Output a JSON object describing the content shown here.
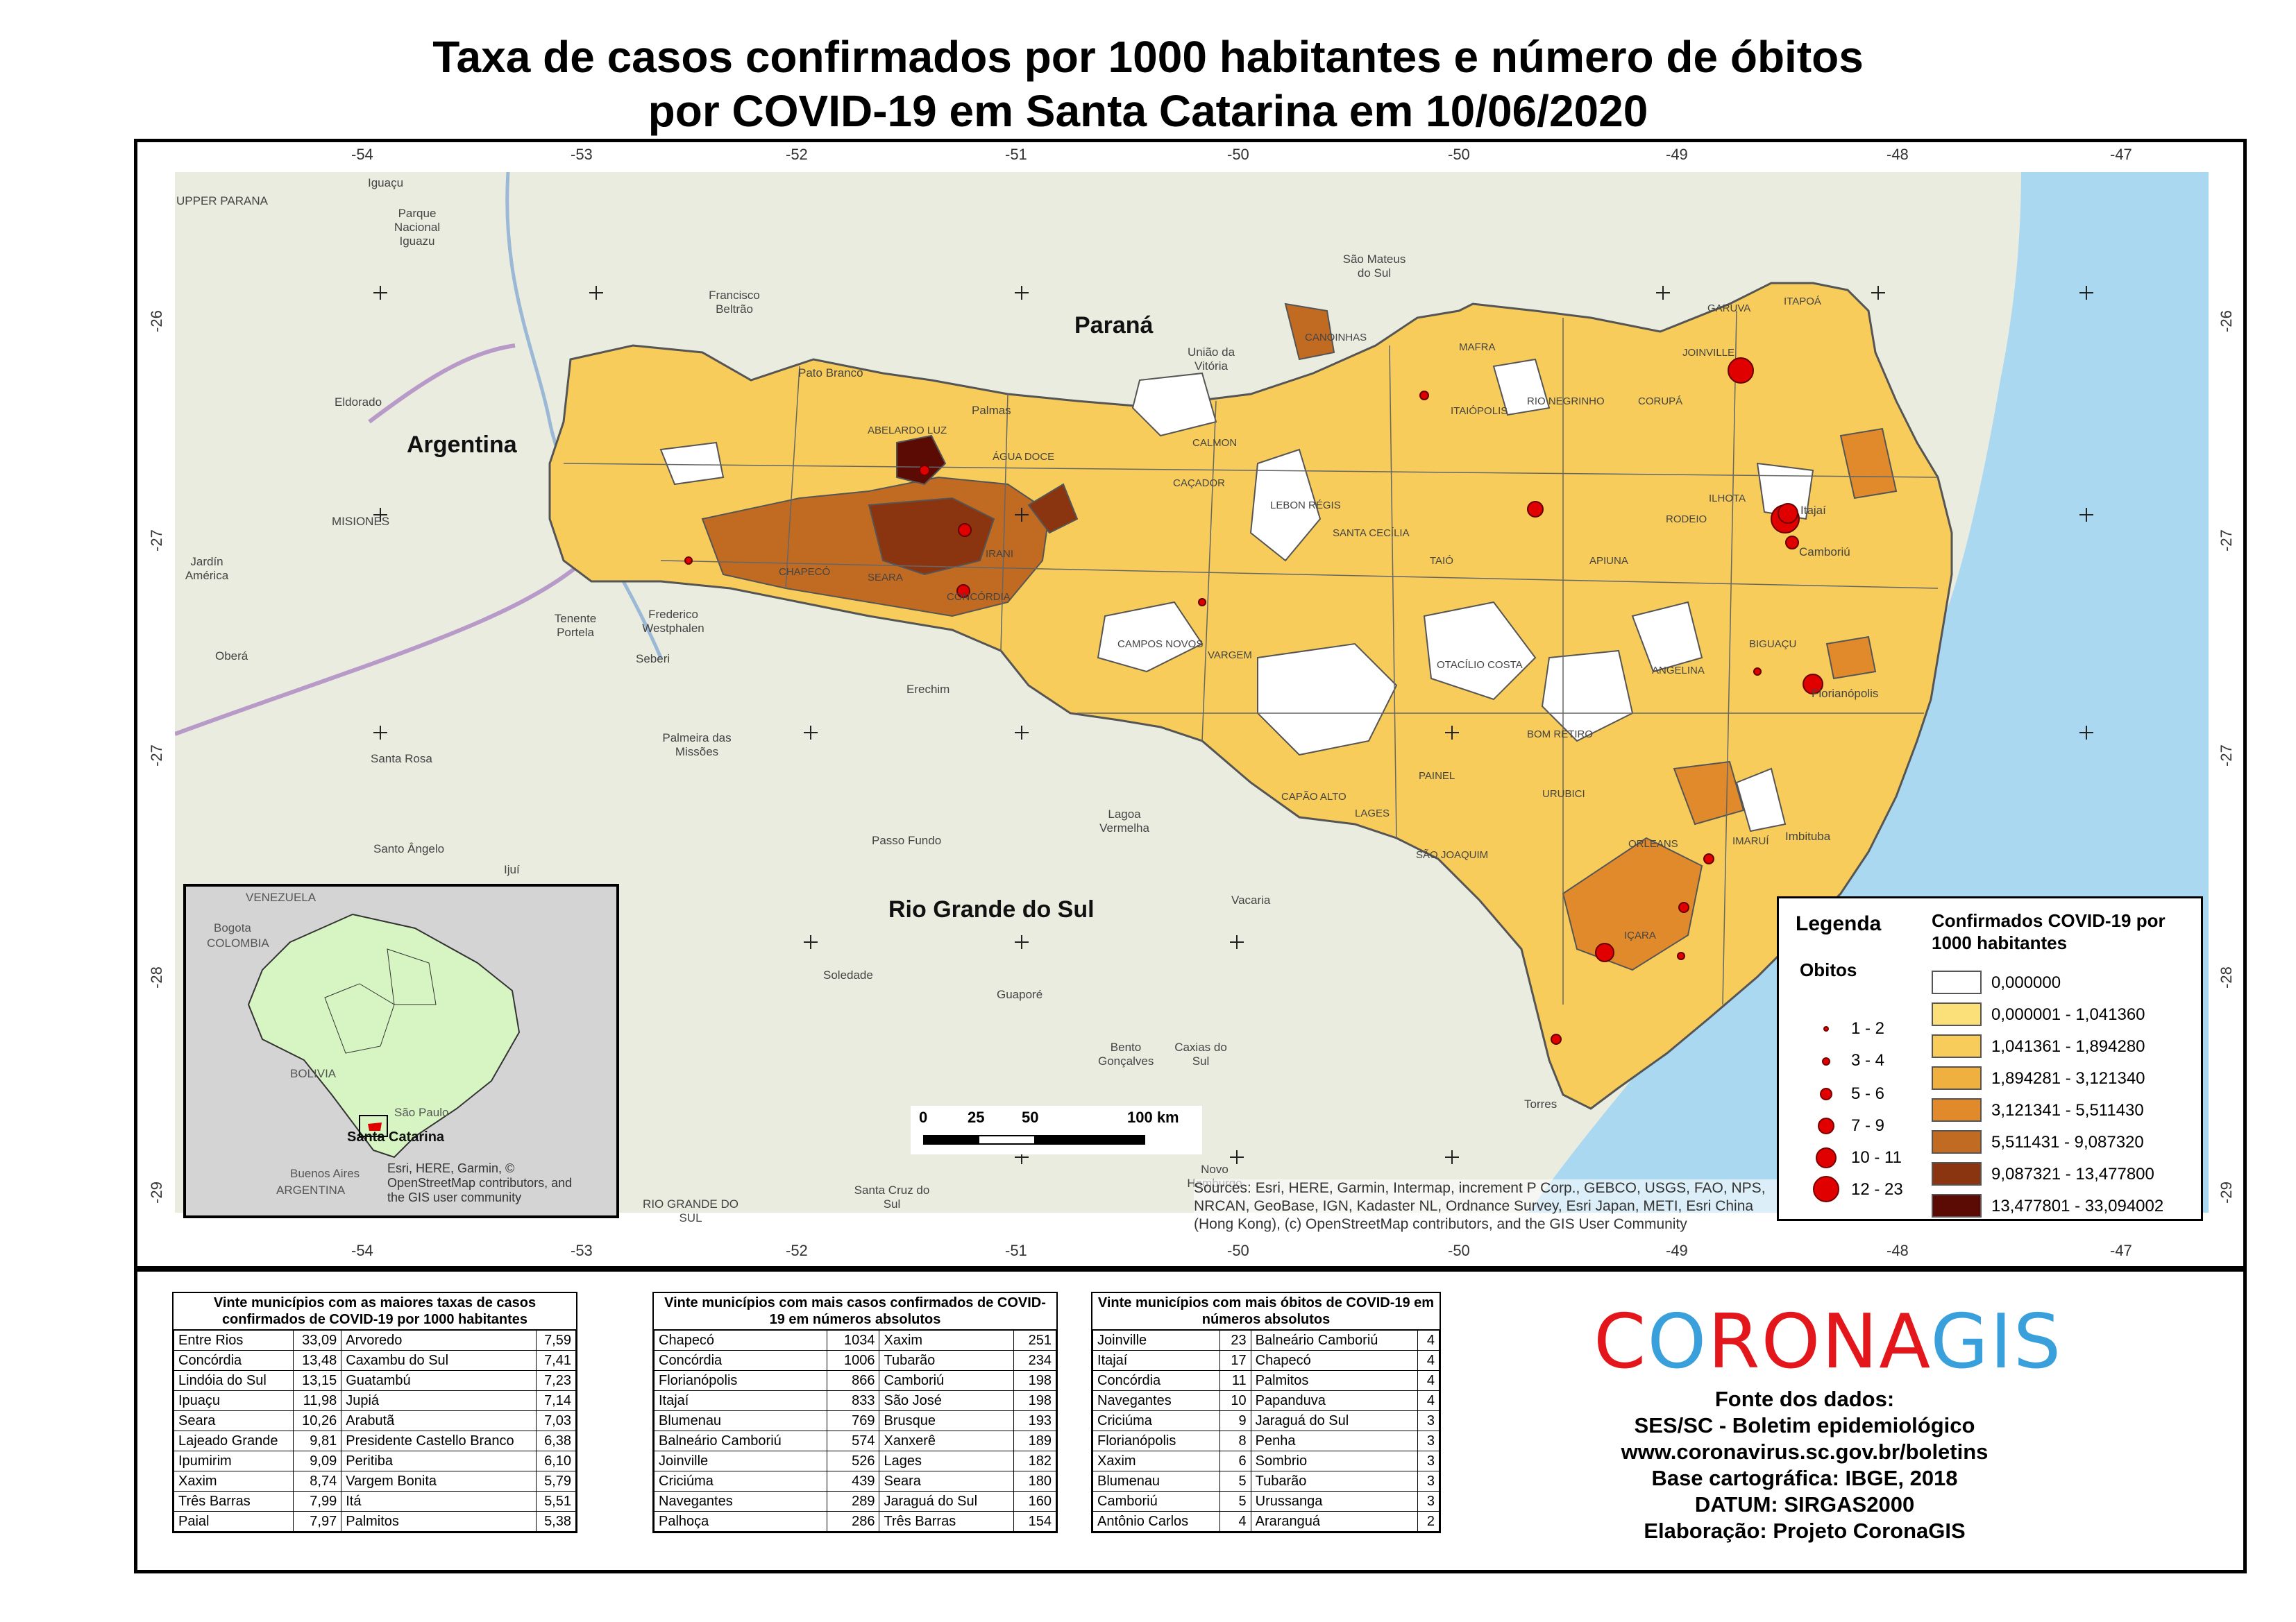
{
  "title": {
    "line1": "Taxa de casos confirmados por 1000 habitantes e número de óbitos",
    "line2": "por COVID-19 em Santa Catarina em 10/06/2020"
  },
  "graticule": {
    "lon_labels": [
      "-54",
      "-53",
      "-52",
      "-51",
      "-50",
      "-50",
      "-49",
      "-48",
      "-47"
    ],
    "lat_labels": [
      "-26",
      "-27",
      "-27",
      "-28",
      "-29"
    ]
  },
  "map_labels": {
    "countries_states": [
      "Argentina",
      "Paraná",
      "Rio Grande do Sul"
    ],
    "places": [
      "UPPER PARANA",
      "Iguaçu",
      "Parque Nacional Iguazu",
      "Francisco Beltrão",
      "Pato Branco",
      "Palmas",
      "União da Vitória",
      "São Mateus do Sul",
      "Eldorado",
      "MISIONES",
      "Jardín América",
      "Oberá",
      "Tenente Portela",
      "Frederico Westphalen",
      "Seberi",
      "Erechim",
      "Palmeira das Missões",
      "Santa Rosa",
      "Santo Ângelo",
      "Ijuí",
      "Passo Fundo",
      "Lagoa Vermelha",
      "Vacaria",
      "Soledade",
      "Guaporé",
      "Bento Gonçalves",
      "Caxias do Sul",
      "Novo Hamburgo",
      "Santa Cruz do Sul",
      "RIO GRANDE DO SUL",
      "Imbituba",
      "Torres",
      "Itajaí",
      "Camboriú",
      "Florianópolis"
    ],
    "municipalities": [
      "GARUVA",
      "ITAPOÁ",
      "JOINVILLE",
      "MAFRA",
      "CANOINHAS",
      "CORUPÁ",
      "ITAIÓPOLIS",
      "RIO NEGRINHO",
      "CALMON",
      "CAÇADOR",
      "ABELARDO LUZ",
      "ÁGUA DOCE",
      "LEBON RÉGIS",
      "SANTA CECÍLIA",
      "TAIÓ",
      "APIUNA",
      "BIGUAÇU",
      "ANGELINA",
      "CAMPOS NOVOS",
      "VARGEM",
      "OTACÍLIO COSTA",
      "BOM RETIRO",
      "URUBICI",
      "PAINEL",
      "CAPÃO ALTO",
      "LAGES",
      "SÃO JOAQUIM",
      "ORLEANS",
      "IMARUÍ",
      "IÇARA",
      "CHAPECÓ",
      "SEARA",
      "CONCÓRDIA",
      "IRANI",
      "ILHOTA",
      "RODEIO"
    ]
  },
  "scale_bar": {
    "ticks": [
      "0",
      "25",
      "50",
      "100 km"
    ]
  },
  "sources_text": "Sources: Esri, HERE, Garmin, Intermap, increment P Corp., GEBCO, USGS, FAO, NPS, NRCAN, GeoBase, IGN, Kadaster NL, Ordnance Survey, Esri Japan, METI, Esri China (Hong Kong), (c) OpenStreetMap contributors, and the GIS User Community",
  "inset": {
    "labels": [
      "VENEZUELA",
      "Bogota",
      "COLOMBIA",
      "BOLIVIA",
      "São Paulo",
      "Santa Catarina",
      "Buenos Aires",
      "ARGENTINA"
    ],
    "credit": "Esri, HERE, Garmin, © OpenStreetMap contributors, and the GIS user community"
  },
  "legend": {
    "title": "Legenda",
    "obitos_title": "Obitos",
    "obitos_classes": [
      "1 - 2",
      "3 - 4",
      "5 - 6",
      "7 - 9",
      "10 - 11",
      "12 - 23"
    ],
    "rate_title": "Confirmados COVID-19 por 1000 habitantes",
    "rate_classes": [
      {
        "label": "0,000000",
        "color": "#ffffff"
      },
      {
        "label": "0,000001 - 1,041360",
        "color": "#fbe07a"
      },
      {
        "label": "1,041361 - 1,894280",
        "color": "#f7cc5a"
      },
      {
        "label": "1,894281 - 3,121340",
        "color": "#efb040"
      },
      {
        "label": "3,121341 - 5,511430",
        "color": "#e08a2c"
      },
      {
        "label": "5,511431 - 9,087320",
        "color": "#c06a22"
      },
      {
        "label": "9,087321 - 13,477800",
        "color": "#8a3410"
      },
      {
        "label": "13,477801 - 33,094002",
        "color": "#5c0a04"
      }
    ]
  },
  "table1": {
    "caption": "Vinte municípios com as maiores taxas de casos confirmados de COVID-19 por 1000 habitantes",
    "rows": [
      [
        "Entre Rios",
        "33,09",
        "Arvoredo",
        "7,59"
      ],
      [
        "Concórdia",
        "13,48",
        "Caxambu do Sul",
        "7,41"
      ],
      [
        "Lindóia do Sul",
        "13,15",
        "Guatambú",
        "7,23"
      ],
      [
        "Ipuaçu",
        "11,98",
        "Jupiá",
        "7,14"
      ],
      [
        "Seara",
        "10,26",
        "Arabutã",
        "7,03"
      ],
      [
        "Lajeado Grande",
        "9,81",
        "Presidente Castello Branco",
        "6,38"
      ],
      [
        "Ipumirim",
        "9,09",
        "Peritiba",
        "6,10"
      ],
      [
        "Xaxim",
        "8,74",
        "Vargem Bonita",
        "5,79"
      ],
      [
        "Três Barras",
        "7,99",
        "Itá",
        "5,51"
      ],
      [
        "Paial",
        "7,97",
        "Palmitos",
        "5,38"
      ]
    ]
  },
  "table2": {
    "caption": "Vinte municípios com mais casos confirmados de COVID-19 em números absolutos",
    "rows": [
      [
        "Chapecó",
        "1034",
        "Xaxim",
        "251"
      ],
      [
        "Concórdia",
        "1006",
        "Tubarão",
        "234"
      ],
      [
        "Florianópolis",
        "866",
        "Camboriú",
        "198"
      ],
      [
        "Itajaí",
        "833",
        "São José",
        "198"
      ],
      [
        "Blumenau",
        "769",
        "Brusque",
        "193"
      ],
      [
        "Balneário Camboriú",
        "574",
        "Xanxerê",
        "189"
      ],
      [
        "Joinville",
        "526",
        "Lages",
        "182"
      ],
      [
        "Criciúma",
        "439",
        "Seara",
        "180"
      ],
      [
        "Navegantes",
        "289",
        "Jaraguá do Sul",
        "160"
      ],
      [
        "Palhoça",
        "286",
        "Três Barras",
        "154"
      ]
    ]
  },
  "table3": {
    "caption": "Vinte municípios com mais óbitos de COVID-19 em números absolutos",
    "rows": [
      [
        "Joinville",
        "23",
        "Balneário Camboriú",
        "4"
      ],
      [
        "Itajaí",
        "17",
        "Chapecó",
        "4"
      ],
      [
        "Concórdia",
        "11",
        "Palmitos",
        "4"
      ],
      [
        "Navegantes",
        "10",
        "Papanduva",
        "4"
      ],
      [
        "Criciúma",
        "9",
        "Jaraguá do Sul",
        "3"
      ],
      [
        "Florianópolis",
        "8",
        "Penha",
        "3"
      ],
      [
        "Xaxim",
        "6",
        "Sombrio",
        "3"
      ],
      [
        "Blumenau",
        "5",
        "Tubarão",
        "3"
      ],
      [
        "Camboriú",
        "5",
        "Urussanga",
        "3"
      ],
      [
        "Antônio Carlos",
        "4",
        "Araranguá",
        "2"
      ]
    ]
  },
  "logo": {
    "part1": "C",
    "part2": "O",
    "part3": "RONA",
    "part4": "GIS"
  },
  "credits": [
    "Fonte dos dados:",
    "SES/SC - Boletim epidemiológico",
    "www.coronavirus.sc.gov.br/boletins",
    "Base cartográfica: IBGE, 2018",
    "DATUM: SIRGAS2000",
    "Elaboração: Projeto CoronaGIS"
  ]
}
